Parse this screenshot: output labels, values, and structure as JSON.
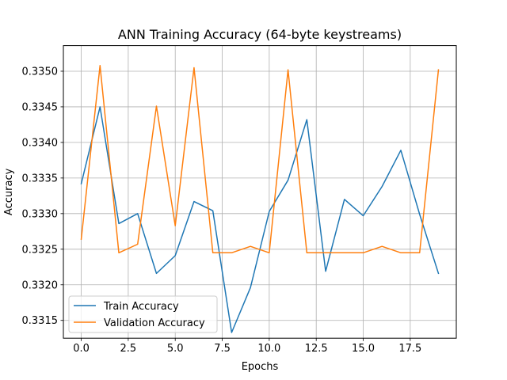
{
  "chart_data": {
    "type": "line",
    "title": "ANN Training Accuracy (64-byte keystreams)",
    "xlabel": "Epochs",
    "ylabel": "Accuracy",
    "xlim": [
      -0.95,
      19.95
    ],
    "ylim": [
      0.33125,
      0.33536
    ],
    "xticks": [
      0.0,
      2.5,
      5.0,
      7.5,
      10.0,
      12.5,
      15.0,
      17.5
    ],
    "xtick_labels": [
      "0.0",
      "2.5",
      "5.0",
      "7.5",
      "10.0",
      "12.5",
      "15.0",
      "17.5"
    ],
    "yticks": [
      0.3315,
      0.332,
      0.3325,
      0.333,
      0.3335,
      0.334,
      0.3345,
      0.335
    ],
    "ytick_labels": [
      "0.3315",
      "0.3320",
      "0.3325",
      "0.3330",
      "0.3335",
      "0.3340",
      "0.3345",
      "0.3350"
    ],
    "grid": true,
    "legend_position": "bottom-left",
    "x": [
      0,
      1,
      2,
      3,
      4,
      5,
      6,
      7,
      8,
      9,
      10,
      11,
      12,
      13,
      14,
      15,
      16,
      17,
      18,
      19
    ],
    "series": [
      {
        "name": "Train Accuracy",
        "color": "#1f77b4",
        "values": [
          0.33342,
          0.3345,
          0.33286,
          0.333,
          0.33216,
          0.33241,
          0.33317,
          0.33304,
          0.33133,
          0.33196,
          0.33303,
          0.33347,
          0.33432,
          0.33219,
          0.3332,
          0.33297,
          0.33338,
          0.33389,
          0.33299,
          0.33216
        ]
      },
      {
        "name": "Validation Accuracy",
        "color": "#ff7f0e",
        "values": [
          0.33264,
          0.33508,
          0.33245,
          0.33257,
          0.33451,
          0.33283,
          0.33505,
          0.33245,
          0.33245,
          0.33254,
          0.33245,
          0.33502,
          0.33245,
          0.33245,
          0.33245,
          0.33245,
          0.33254,
          0.33245,
          0.33245,
          0.33502
        ]
      }
    ]
  }
}
